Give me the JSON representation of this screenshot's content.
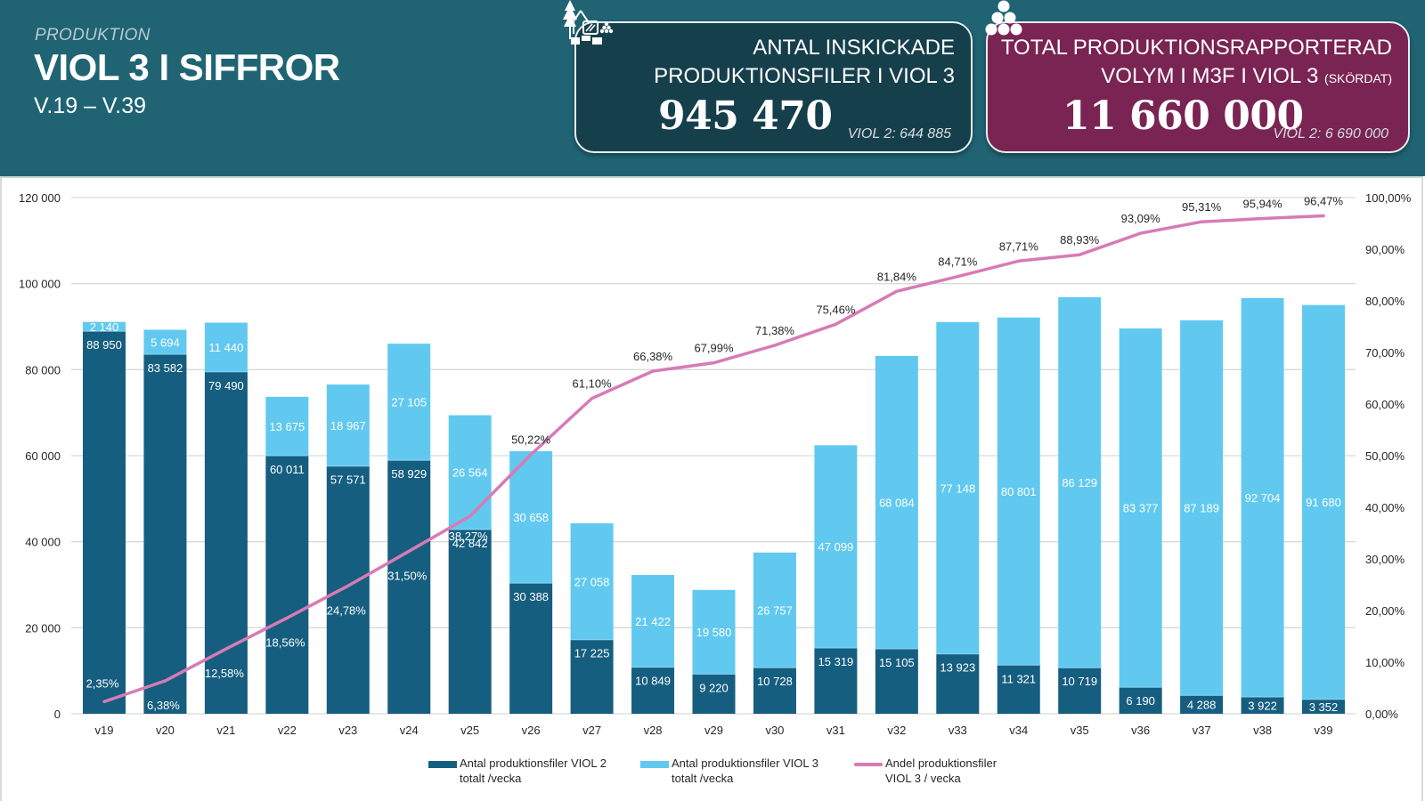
{
  "header": {
    "kicker": "PRODUKTION",
    "title": "VIOL 3 I SIFFROR",
    "subtitle": "V.19 – V.39",
    "background": "#206474"
  },
  "kpis": {
    "files": {
      "icon": "forest-harvester-icon",
      "label_line1": "ANTAL INSKICKADE",
      "label_line2": "PRODUKTIONSFILER I VIOL 3",
      "value": "945 470",
      "compare": "VIOL 2: 644 885",
      "color": "#163f4c"
    },
    "volume": {
      "icon": "log-pile-icon",
      "label_line1": "TOTAL PRODUKTIONSRAPPORTERAD",
      "label_line2": "VOLYM I  M3F I VIOL 3",
      "label_suffix": "(SKÖRDAT)",
      "value": "11 660 000",
      "compare": "VIOL 2: 6 690 000",
      "color": "#7a2453"
    }
  },
  "chart_data": {
    "type": "bar",
    "stacked": true,
    "secondary_type": "line",
    "title": "",
    "xlabel": "",
    "ylabel": "",
    "categories": [
      "v19",
      "v20",
      "v21",
      "v22",
      "v23",
      "v24",
      "v25",
      "v26",
      "v27",
      "v28",
      "v29",
      "v30",
      "v31",
      "v32",
      "v33",
      "v34",
      "v35",
      "v36",
      "v37",
      "v38",
      "v39"
    ],
    "ylim": [
      0,
      120000
    ],
    "yticks": [
      0,
      20000,
      40000,
      60000,
      80000,
      100000,
      120000
    ],
    "ytick_labels": [
      "0",
      "20 000",
      "40 000",
      "60 000",
      "80 000",
      "100 000",
      "120 000"
    ],
    "y2lim": [
      0,
      100
    ],
    "y2ticks": [
      0,
      10,
      20,
      30,
      40,
      50,
      60,
      70,
      80,
      90,
      100
    ],
    "y2tick_labels": [
      "0,00%",
      "10,00%",
      "20,00%",
      "30,00%",
      "40,00%",
      "50,00%",
      "60,00%",
      "70,00%",
      "80,00%",
      "90,00%",
      "100,00%"
    ],
    "grid": true,
    "legend_position": "bottom",
    "series": [
      {
        "name": "Antal produktionsfiler VIOL 2 totalt /vecka",
        "legend_line1": "Antal produktionsfiler VIOL 2",
        "legend_line2": "totalt /vecka",
        "axis": "left",
        "kind": "bar",
        "color": "#165e80",
        "values": [
          88950,
          83582,
          79490,
          60011,
          57571,
          58929,
          42842,
          30388,
          17225,
          10849,
          9220,
          10728,
          15319,
          15105,
          13923,
          11321,
          10719,
          6190,
          4288,
          3922,
          3352
        ],
        "labels": [
          "88 950",
          "83 582",
          "79 490",
          "60 011",
          "57 571",
          "58 929",
          "42 842",
          "30 388",
          "17 225",
          "10 849",
          "9 220",
          "10 728",
          "15 319",
          "15 105",
          "13 923",
          "11 321",
          "10 719",
          "6 190",
          "4 288",
          "3 922",
          "3 352"
        ]
      },
      {
        "name": "Antal produktionsfiler VIOL 3 totalt /vecka",
        "legend_line1": "Antal produktionsfiler VIOL 3",
        "legend_line2": "totalt /vecka",
        "axis": "left",
        "kind": "bar",
        "color": "#61c9f0",
        "values": [
          2140,
          5694,
          11440,
          13675,
          18967,
          27105,
          26564,
          30658,
          27058,
          21422,
          19580,
          26757,
          47099,
          68084,
          77148,
          80801,
          86129,
          83377,
          87189,
          92704,
          91680
        ],
        "labels": [
          "2 140",
          "5 694",
          "11 440",
          "13 675",
          "18 967",
          "27 105",
          "26 564",
          "30 658",
          "27 058",
          "21 422",
          "19 580",
          "26 757",
          "47 099",
          "68 084",
          "77 148",
          "80 801",
          "86 129",
          "83 377",
          "87 189",
          "92 704",
          "91 680"
        ]
      },
      {
        "name": "Andel produktionsfiler VIOL 3 / vecka",
        "legend_line1": "Andel produktionsfiler",
        "legend_line2": "VIOL 3 / vecka",
        "axis": "right",
        "kind": "line",
        "color": "#d77bb5",
        "values": [
          2.35,
          6.38,
          12.58,
          18.56,
          24.78,
          31.5,
          38.27,
          50.22,
          61.1,
          66.38,
          67.99,
          71.38,
          75.46,
          81.84,
          84.71,
          87.71,
          88.93,
          93.09,
          95.31,
          95.94,
          96.47
        ],
        "labels": [
          "2,35%",
          "6,38%",
          "12,58%",
          "18,56%",
          "24,78%",
          "31,50%",
          "38,27%",
          "50,22%",
          "61,10%",
          "66,38%",
          "67,99%",
          "71,38%",
          "75,46%",
          "81,84%",
          "84,71%",
          "87,71%",
          "88,93%",
          "93,09%",
          "95,31%",
          "95,94%",
          "96,47%"
        ]
      }
    ]
  }
}
